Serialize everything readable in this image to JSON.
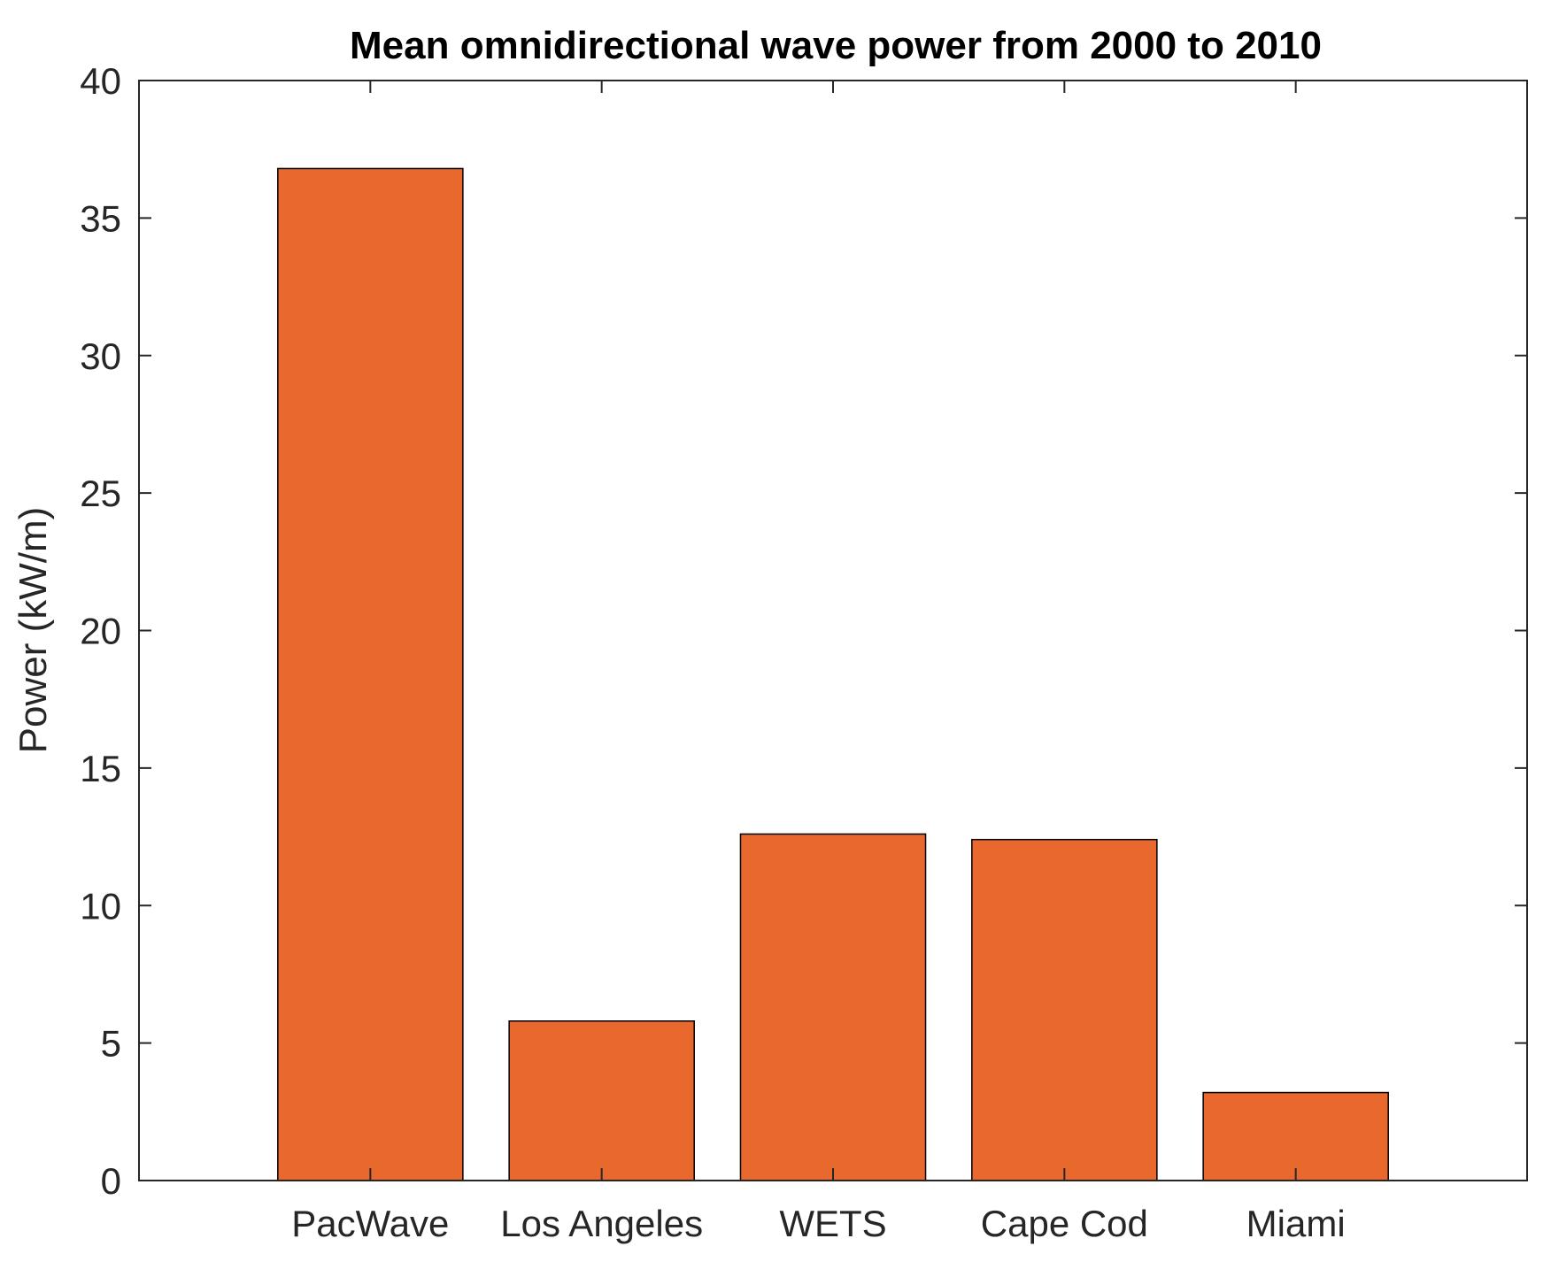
{
  "chart_data": {
    "type": "bar",
    "title": "Mean omnidirectional wave power from 2000 to 2010",
    "xlabel": "",
    "ylabel": "Power (kW/m)",
    "categories": [
      "PacWave",
      "Los Angeles",
      "WETS",
      "Cape Cod",
      "Miami"
    ],
    "values": [
      36.8,
      5.8,
      12.6,
      12.4,
      3.2
    ],
    "ylim": [
      0,
      40
    ],
    "yticks": [
      0,
      5,
      10,
      15,
      20,
      25,
      30,
      35,
      40
    ],
    "xlim": [
      0,
      6
    ],
    "grid": false,
    "bar_color": "#E8682E",
    "edge_color": "#000000"
  }
}
